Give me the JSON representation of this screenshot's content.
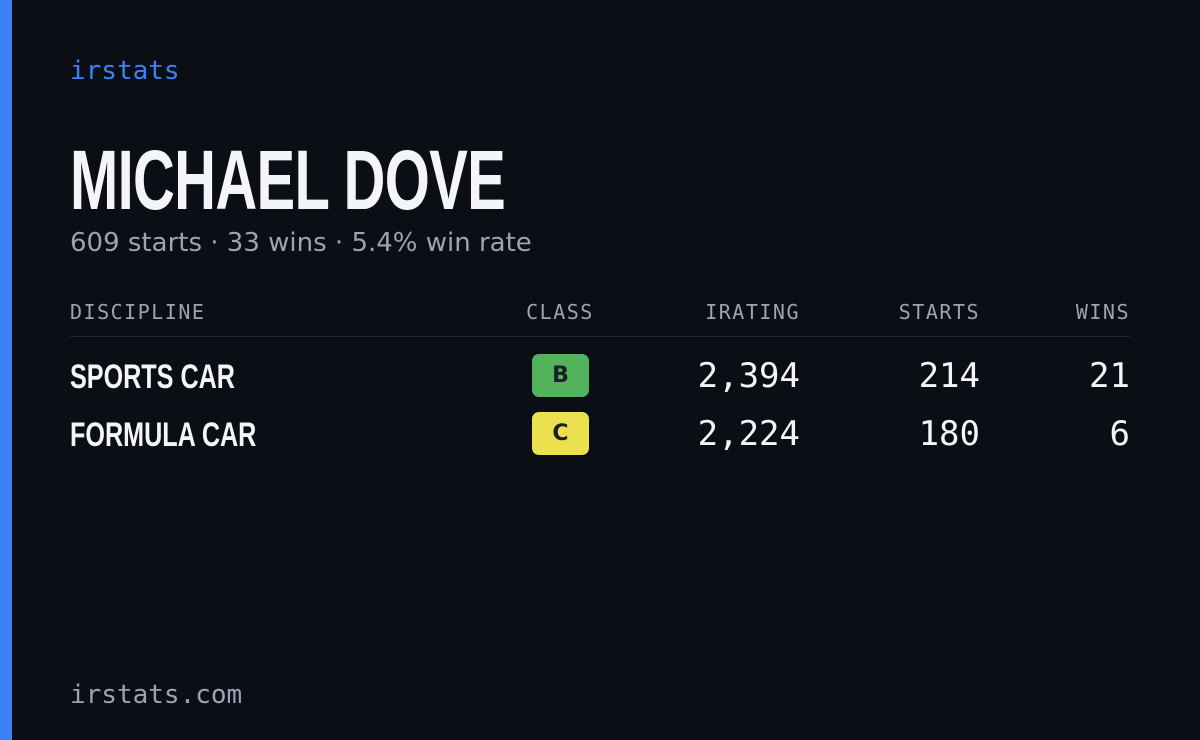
{
  "header": {
    "brand": "irstats",
    "name": "MICHAEL DOVE",
    "summary": "609 starts · 33 wins · 5.4% win rate"
  },
  "table": {
    "headers": [
      "DISCIPLINE",
      "CLASS",
      "IRATING",
      "STARTS",
      "WINS"
    ],
    "rows": [
      [
        "SPORTS CAR",
        "B",
        "2,394",
        "214",
        "21"
      ],
      [
        "FORMULA CAR",
        "C",
        "2,224",
        "180",
        "6"
      ]
    ],
    "badge_colors": [
      "#52b35c",
      "#ebe04e"
    ]
  },
  "footer": {
    "site": "irstats.com"
  }
}
